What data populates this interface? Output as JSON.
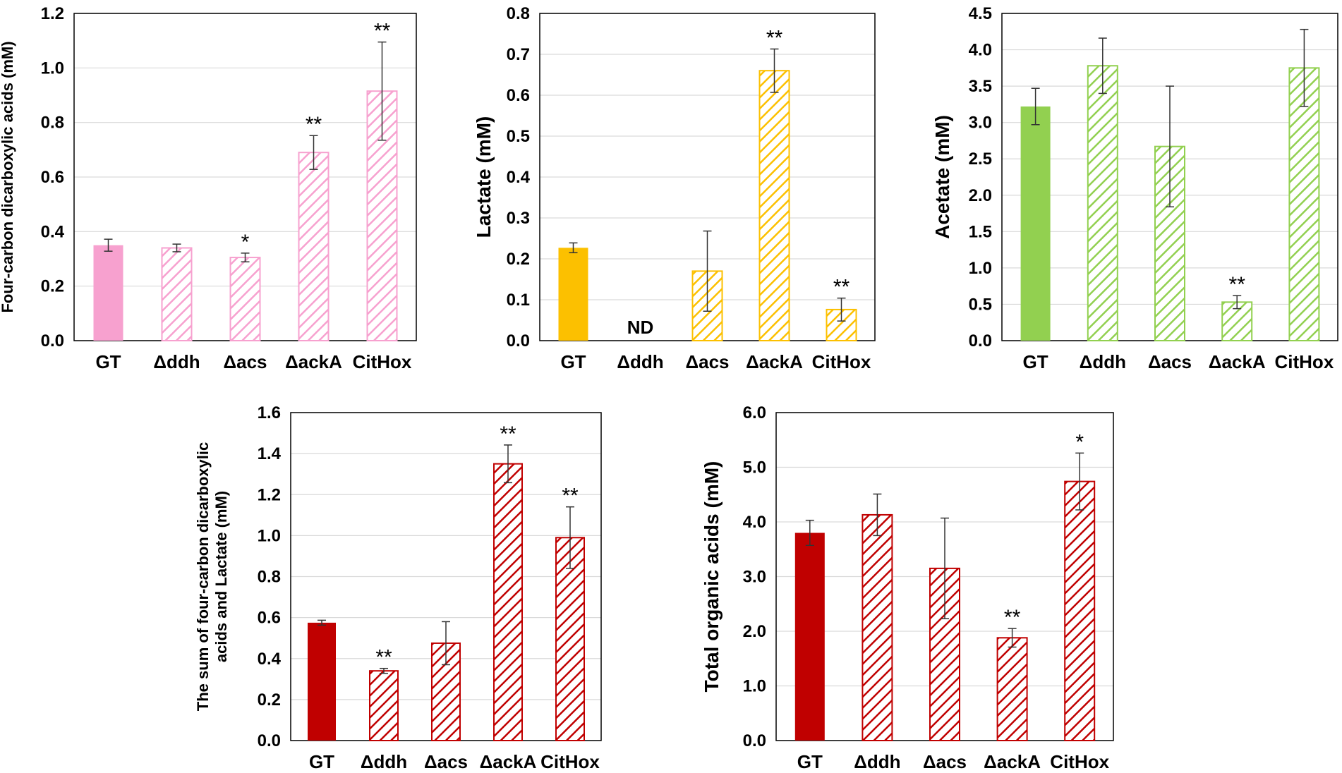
{
  "figure": {
    "chart_data": [
      {
        "type": "bar",
        "title": "",
        "xlabel": "",
        "ylabel": "Four-carbon dicarboxylic acids (mM)",
        "ylim": [
          0,
          1.2
        ],
        "yticks": [
          "0.0",
          "0.2",
          "0.4",
          "0.6",
          "0.8",
          "1.0",
          "1.2"
        ],
        "categories": [
          "GT",
          "Δddh",
          "Δacs",
          "ΔackA",
          "CitHox"
        ],
        "values": [
          0.35,
          0.34,
          0.305,
          0.69,
          0.915
        ],
        "errors": [
          0.022,
          0.014,
          0.016,
          0.062,
          0.18
        ],
        "significance": [
          "",
          "",
          "*",
          "**",
          "**"
        ],
        "color": "#f7a1cf",
        "fill": [
          "solid",
          "hatched",
          "hatched",
          "hatched",
          "hatched"
        ],
        "nd": []
      },
      {
        "type": "bar",
        "title": "",
        "xlabel": "",
        "ylabel": "Lactate (mM)",
        "ylim": [
          0,
          0.8
        ],
        "yticks": [
          "0.0",
          "0.1",
          "0.2",
          "0.3",
          "0.4",
          "0.5",
          "0.6",
          "0.7",
          "0.8"
        ],
        "categories": [
          "GT",
          "Δddh",
          "Δacs",
          "ΔackA",
          "CitHox"
        ],
        "values": [
          0.227,
          null,
          0.17,
          0.66,
          0.076
        ],
        "errors": [
          0.012,
          null,
          0.098,
          0.053,
          0.028
        ],
        "significance": [
          "",
          "",
          "",
          "**",
          "**"
        ],
        "color": "#fcc000",
        "fill": [
          "solid",
          "hatched",
          "hatched",
          "hatched",
          "hatched"
        ],
        "nd": [
          "",
          "ND",
          "",
          "",
          ""
        ]
      },
      {
        "type": "bar",
        "title": "",
        "xlabel": "",
        "ylabel": "Acetate (mM)",
        "ylim": [
          0,
          4.5
        ],
        "yticks": [
          "0.0",
          "0.5",
          "1.0",
          "1.5",
          "2.0",
          "2.5",
          "3.0",
          "3.5",
          "4.0",
          "4.5"
        ],
        "categories": [
          "GT",
          "Δddh",
          "Δacs",
          "ΔackA",
          "CitHox"
        ],
        "values": [
          3.22,
          3.78,
          2.67,
          0.53,
          3.75
        ],
        "errors": [
          0.25,
          0.38,
          0.83,
          0.09,
          0.53
        ],
        "significance": [
          "",
          "",
          "",
          "**",
          ""
        ],
        "color": "#92d050",
        "fill": [
          "solid",
          "hatched",
          "hatched",
          "hatched",
          "hatched"
        ],
        "nd": []
      },
      {
        "type": "bar",
        "title": "",
        "xlabel": "",
        "ylabel": "The sum of four-carbon dicarboxylic acids and Lactate (mM)",
        "ylabel_lines": [
          "The sum of four-carbon dicarboxylic",
          "acids and Lactate (mM)"
        ],
        "ylim": [
          0,
          1.6
        ],
        "yticks": [
          "0.0",
          "0.2",
          "0.4",
          "0.6",
          "0.8",
          "1.0",
          "1.2",
          "1.4",
          "1.6"
        ],
        "categories": [
          "GT",
          "Δddh",
          "Δacs",
          "ΔackA",
          "CitHox"
        ],
        "values": [
          0.575,
          0.34,
          0.475,
          1.35,
          0.99
        ],
        "errors": [
          0.012,
          0.012,
          0.105,
          0.092,
          0.15
        ],
        "significance": [
          "",
          "**",
          "",
          "**",
          "**"
        ],
        "color": "#c00000",
        "fill": [
          "solid",
          "hatched",
          "hatched",
          "hatched",
          "hatched"
        ],
        "nd": []
      },
      {
        "type": "bar",
        "title": "",
        "xlabel": "",
        "ylabel": "Total organic acids (mM)",
        "ylim": [
          0,
          6.0
        ],
        "yticks": [
          "0.0",
          "1.0",
          "2.0",
          "3.0",
          "4.0",
          "5.0",
          "6.0"
        ],
        "categories": [
          "GT",
          "Δddh",
          "Δacs",
          "ΔackA",
          "CitHox"
        ],
        "values": [
          3.8,
          4.13,
          3.15,
          1.88,
          4.74
        ],
        "errors": [
          0.23,
          0.38,
          0.92,
          0.17,
          0.52
        ],
        "significance": [
          "",
          "",
          "",
          "**",
          "*"
        ],
        "color": "#c00000",
        "fill": [
          "solid",
          "hatched",
          "hatched",
          "hatched",
          "hatched"
        ],
        "nd": []
      }
    ]
  }
}
